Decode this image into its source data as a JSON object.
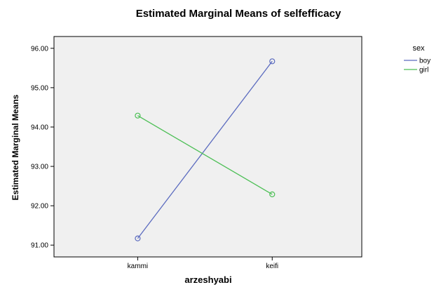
{
  "chart_data": {
    "type": "line",
    "title": "Estimated Marginal Means of selfefficacy",
    "xlabel": "arzeshyabi",
    "ylabel": "Estimated Marginal Means",
    "categories": [
      "kammi",
      "keifi"
    ],
    "ylim": [
      90.7,
      96.3
    ],
    "yticks": [
      "91.00",
      "92.00",
      "93.00",
      "94.00",
      "95.00",
      "96.00"
    ],
    "ytick_values": [
      91,
      92,
      93,
      94,
      95,
      96
    ],
    "grid": false,
    "legend_title": "sex",
    "legend_position": "top-right",
    "plot_background": "#f0f0f0",
    "series": [
      {
        "name": "boy",
        "values": [
          91.17,
          95.67
        ],
        "color": "#5b6bbf"
      },
      {
        "name": "girl",
        "values": [
          94.29,
          92.29
        ],
        "color": "#4cbf55"
      }
    ]
  }
}
